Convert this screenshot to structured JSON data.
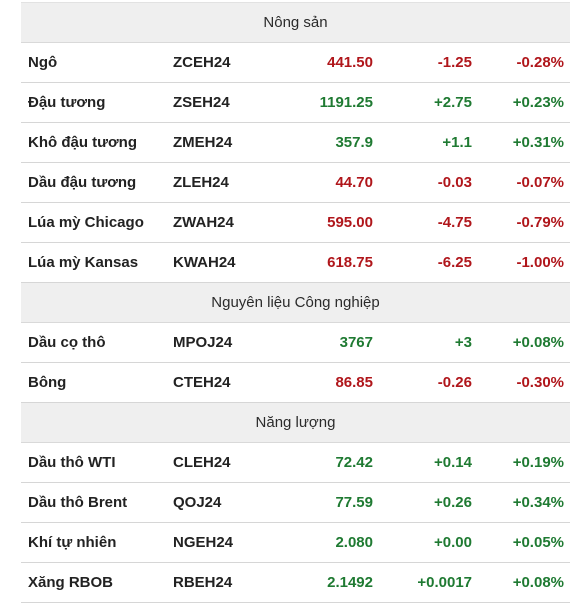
{
  "colors": {
    "up": "#1f7a32",
    "down": "#b0161b",
    "section_bg": "#efefef"
  },
  "sections": [
    {
      "title": "Nông sản",
      "rows": [
        {
          "name": "Ngô",
          "code": "ZCEH24",
          "price": "441.50",
          "change": "-1.25",
          "pct": "-0.28%",
          "direction": "down"
        },
        {
          "name": "Đậu tương",
          "code": "ZSEH24",
          "price": "1191.25",
          "change": "+2.75",
          "pct": "+0.23%",
          "direction": "up"
        },
        {
          "name": "Khô đậu tương",
          "code": "ZMEH24",
          "price": "357.9",
          "change": "+1.1",
          "pct": "+0.31%",
          "direction": "up"
        },
        {
          "name": "Dầu đậu tương",
          "code": "ZLEH24",
          "price": "44.70",
          "change": "-0.03",
          "pct": "-0.07%",
          "direction": "down"
        },
        {
          "name": "Lúa mỳ Chicago",
          "code": "ZWAH24",
          "price": "595.00",
          "change": "-4.75",
          "pct": "-0.79%",
          "direction": "down"
        },
        {
          "name": "Lúa mỳ Kansas",
          "code": "KWAH24",
          "price": "618.75",
          "change": "-6.25",
          "pct": "-1.00%",
          "direction": "down"
        }
      ]
    },
    {
      "title": "Nguyên liệu Công nghiệp",
      "rows": [
        {
          "name": "Dầu cọ thô",
          "code": "MPOJ24",
          "price": "3767",
          "change": "+3",
          "pct": "+0.08%",
          "direction": "up"
        },
        {
          "name": "Bông",
          "code": "CTEH24",
          "price": "86.85",
          "change": "-0.26",
          "pct": "-0.30%",
          "direction": "down"
        }
      ]
    },
    {
      "title": "Năng lượng",
      "rows": [
        {
          "name": "Dầu thô WTI",
          "code": "CLEH24",
          "price": "72.42",
          "change": "+0.14",
          "pct": "+0.19%",
          "direction": "up"
        },
        {
          "name": "Dầu thô Brent",
          "code": "QOJ24",
          "price": "77.59",
          "change": "+0.26",
          "pct": "+0.34%",
          "direction": "up"
        },
        {
          "name": "Khí tự nhiên",
          "code": "NGEH24",
          "price": "2.080",
          "change": "+0.00",
          "pct": "+0.05%",
          "direction": "up"
        },
        {
          "name": "Xăng RBOB",
          "code": "RBEH24",
          "price": "2.1492",
          "change": "+0.0017",
          "pct": "+0.08%",
          "direction": "up"
        }
      ]
    }
  ]
}
